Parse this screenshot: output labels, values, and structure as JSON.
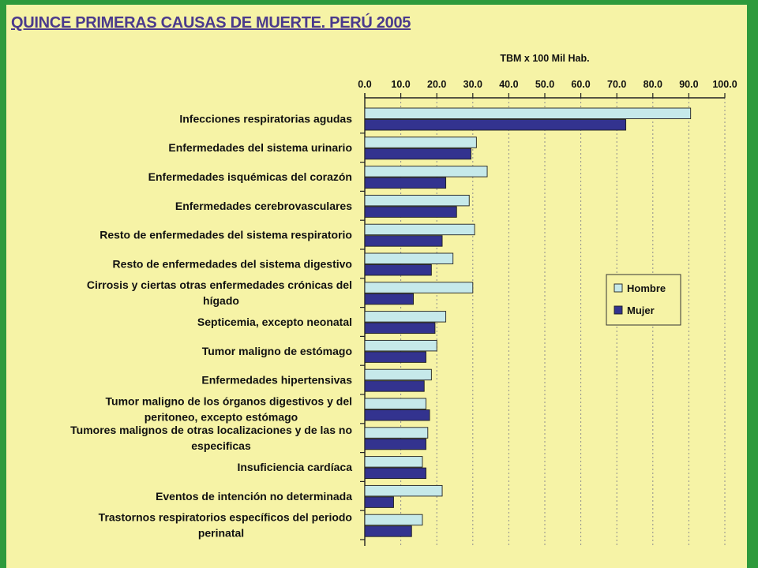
{
  "title": "QUINCE PRIMERAS CAUSAS DE MUERTE. PERÚ 2005",
  "chart_data": {
    "type": "bar",
    "orientation": "horizontal",
    "title": "QUINCE PRIMERAS CAUSAS DE MUERTE. PERÚ 2005",
    "xlabel": "TBM x 100 Mil Hab.",
    "ylabel": "",
    "xlim": [
      0,
      100
    ],
    "ticks": [
      "0.0",
      "10.0",
      "20.0",
      "30.0",
      "40.0",
      "50.0",
      "60.0",
      "70.0",
      "80.0",
      "90.0",
      "100.0"
    ],
    "axis_position": "top",
    "grid": "vertical dashed",
    "legend_position": "right",
    "categories": [
      [
        "Infecciones respiratorias agudas"
      ],
      [
        "Enfermedades del sistema urinario"
      ],
      [
        "Enfermedades isquémicas del corazón"
      ],
      [
        "Enfermedades cerebrovasculares"
      ],
      [
        "Resto de enfermedades del sistema respiratorio"
      ],
      [
        "Resto de enfermedades del sistema digestivo"
      ],
      [
        "Cirrosis y ciertas otras enfermedades crónicas del",
        "hígado"
      ],
      [
        "Septicemia, excepto neonatal"
      ],
      [
        "Tumor maligno de estómago"
      ],
      [
        "Enfermedades hipertensivas"
      ],
      [
        "Tumor maligno de los órganos digestivos y del",
        "peritoneo, excepto estómago"
      ],
      [
        "Tumores malignos de otras localizaciones y de las no",
        "especificas"
      ],
      [
        "Insuficiencia cardíaca"
      ],
      [
        "Eventos de intención no determinada"
      ],
      [
        "Trastornos respiratorios específicos del periodo",
        "perinatal"
      ]
    ],
    "series": [
      {
        "name": "Hombre",
        "color": "#c6e9ea",
        "values": [
          90.5,
          31.0,
          34.0,
          29.0,
          30.5,
          24.5,
          30.0,
          22.5,
          20.0,
          18.5,
          17.0,
          17.5,
          16.0,
          21.5,
          16.0
        ]
      },
      {
        "name": "Mujer",
        "color": "#33338f",
        "values": [
          72.5,
          29.5,
          22.5,
          25.5,
          21.5,
          18.5,
          13.5,
          19.5,
          17.0,
          16.5,
          18.0,
          17.0,
          17.0,
          8.0,
          13.0
        ]
      }
    ]
  }
}
